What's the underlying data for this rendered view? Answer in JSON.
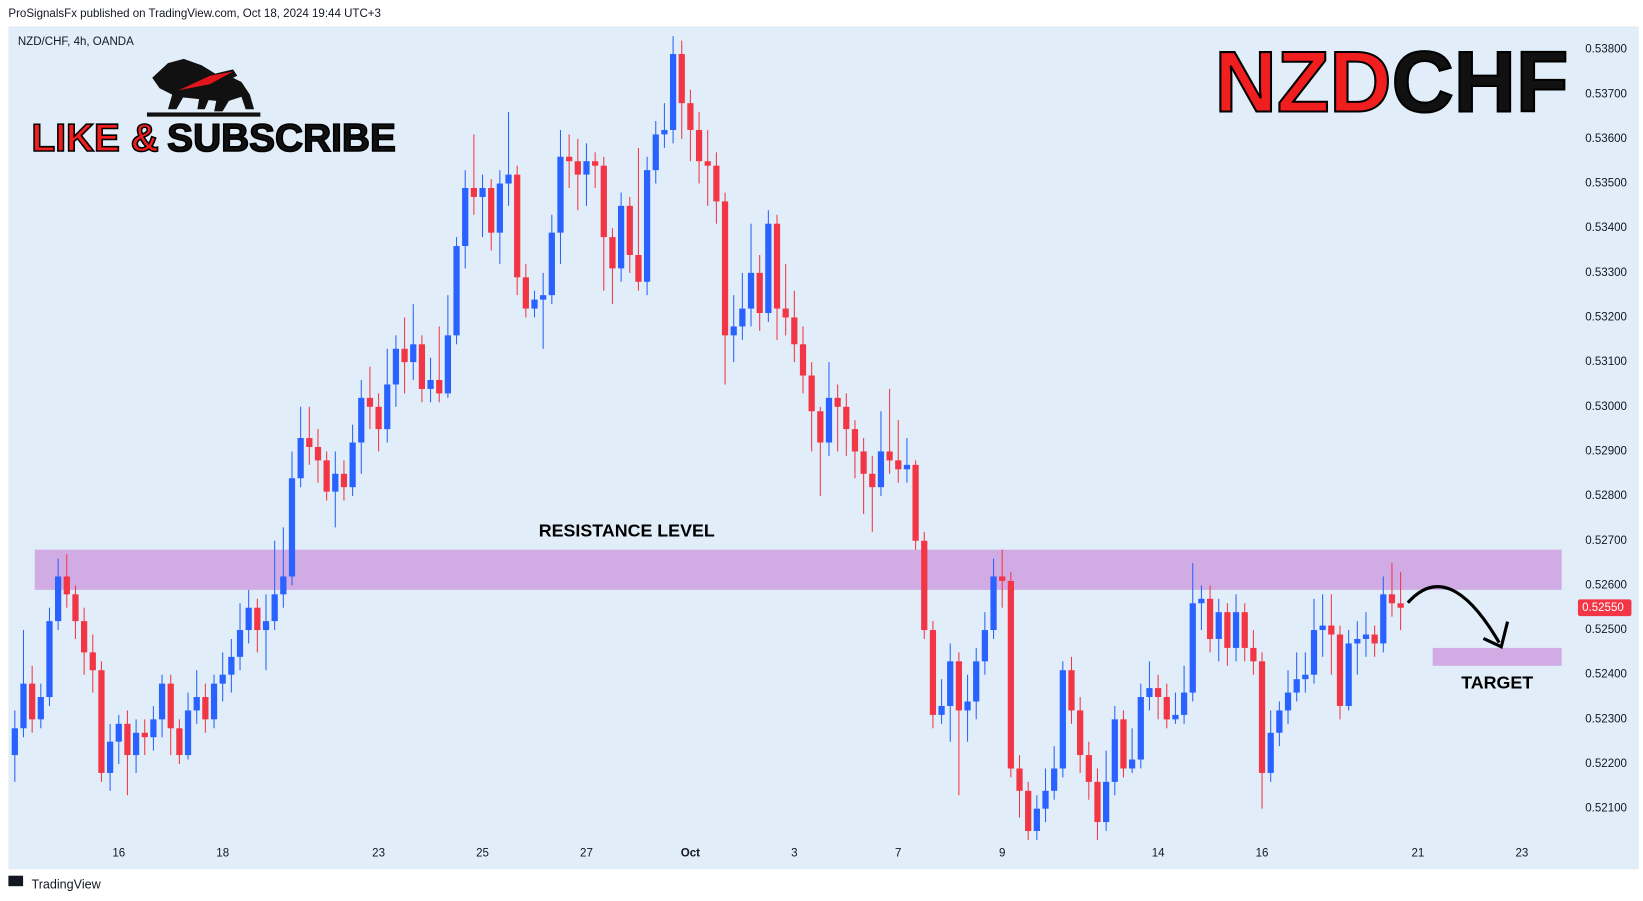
{
  "chart_data": {
    "type": "candlestick",
    "header": "ProSignalsFx published on TradingView.com, Oct 18, 2024 19:44 UTC+3",
    "symbol_info": "NZD/CHF, 4h, OANDA",
    "promo": [
      "LIKE &",
      "SUBSCRIBE"
    ],
    "title": [
      "NZD",
      "CHF"
    ],
    "footer": "TradingView",
    "up_color": "#2962ff",
    "down_color": "#f23645",
    "xlim": [
      -0.5,
      179.5
    ],
    "xticks": [
      {
        "value": 12,
        "label": "16"
      },
      {
        "value": 24,
        "label": "18"
      },
      {
        "value": 42,
        "label": "23"
      },
      {
        "value": 54,
        "label": "25"
      },
      {
        "value": 66,
        "label": "27"
      },
      {
        "value": 78,
        "label": "Oct"
      },
      {
        "value": 90,
        "label": "3"
      },
      {
        "value": 102,
        "label": "7"
      },
      {
        "value": 114,
        "label": "9"
      },
      {
        "value": 132,
        "label": "14"
      },
      {
        "value": 144,
        "label": "16"
      },
      {
        "value": 162,
        "label": "21"
      },
      {
        "value": 174,
        "label": "23"
      }
    ],
    "ylim": [
      0.51964,
      0.53852
    ],
    "yticks": [
      {
        "value": 0.521,
        "label": "0.52100"
      },
      {
        "value": 0.522,
        "label": "0.52200"
      },
      {
        "value": 0.523,
        "label": "0.52300"
      },
      {
        "value": 0.524,
        "label": "0.52400"
      },
      {
        "value": 0.525,
        "label": "0.52500"
      },
      {
        "value": 0.526,
        "label": "0.52600"
      },
      {
        "value": 0.527,
        "label": "0.52700"
      },
      {
        "value": 0.528,
        "label": "0.52800"
      },
      {
        "value": 0.529,
        "label": "0.52900"
      },
      {
        "value": 0.53,
        "label": "0.53000"
      },
      {
        "value": 0.531,
        "label": "0.53100"
      },
      {
        "value": 0.532,
        "label": "0.53200"
      },
      {
        "value": 0.533,
        "label": "0.53300"
      },
      {
        "value": 0.534,
        "label": "0.53400"
      },
      {
        "value": 0.535,
        "label": "0.53500"
      },
      {
        "value": 0.536,
        "label": "0.53600"
      },
      {
        "value": 0.537,
        "label": "0.53700"
      },
      {
        "value": 0.538,
        "label": "0.53800"
      }
    ],
    "last_price": {
      "value": 0.5255,
      "label": "0.52550"
    },
    "zones": [
      {
        "label": "RESISTANCE LEVEL",
        "top": 0.5268,
        "bottom": 0.5259,
        "from": 2.3,
        "to": 178.6,
        "color": "#ce9fe0"
      },
      {
        "label": "TARGET",
        "top": 0.5246,
        "bottom": 0.5242,
        "from": 163.7,
        "to": 178.6,
        "color": "#ce9fe0"
      }
    ],
    "candles": [
      [
        0.5222,
        0.5232,
        0.5216,
        0.5228
      ],
      [
        0.5228,
        0.525,
        0.5226,
        0.5238
      ],
      [
        0.5238,
        0.5242,
        0.5227,
        0.523
      ],
      [
        0.523,
        0.5238,
        0.5228,
        0.5235
      ],
      [
        0.5235,
        0.5255,
        0.5233,
        0.5252
      ],
      [
        0.5252,
        0.5266,
        0.525,
        0.5262
      ],
      [
        0.5262,
        0.5267,
        0.5255,
        0.5258
      ],
      [
        0.5258,
        0.526,
        0.5248,
        0.5252
      ],
      [
        0.5252,
        0.5255,
        0.524,
        0.5245
      ],
      [
        0.5245,
        0.5249,
        0.5236,
        0.5241
      ],
      [
        0.5241,
        0.5243,
        0.5216,
        0.5218
      ],
      [
        0.5218,
        0.5229,
        0.5214,
        0.5225
      ],
      [
        0.5225,
        0.5231,
        0.522,
        0.5229
      ],
      [
        0.5229,
        0.5232,
        0.5213,
        0.5222
      ],
      [
        0.5222,
        0.523,
        0.5218,
        0.5227
      ],
      [
        0.5227,
        0.523,
        0.5222,
        0.5226
      ],
      [
        0.5226,
        0.5233,
        0.5223,
        0.523
      ],
      [
        0.523,
        0.524,
        0.5226,
        0.5238
      ],
      [
        0.5238,
        0.524,
        0.5222,
        0.5228
      ],
      [
        0.5228,
        0.523,
        0.522,
        0.5222
      ],
      [
        0.5222,
        0.5236,
        0.5221,
        0.5232
      ],
      [
        0.5232,
        0.5241,
        0.5229,
        0.5235
      ],
      [
        0.5235,
        0.5238,
        0.5227,
        0.523
      ],
      [
        0.523,
        0.524,
        0.5228,
        0.5238
      ],
      [
        0.5238,
        0.5245,
        0.5234,
        0.524
      ],
      [
        0.524,
        0.5248,
        0.5236,
        0.5244
      ],
      [
        0.5244,
        0.5256,
        0.5241,
        0.525
      ],
      [
        0.525,
        0.5259,
        0.5247,
        0.5255
      ],
      [
        0.5255,
        0.5257,
        0.5245,
        0.525
      ],
      [
        0.525,
        0.5258,
        0.5241,
        0.5252
      ],
      [
        0.5252,
        0.527,
        0.525,
        0.5258
      ],
      [
        0.5258,
        0.5273,
        0.5255,
        0.5262
      ],
      [
        0.5262,
        0.529,
        0.526,
        0.5284
      ],
      [
        0.5284,
        0.53,
        0.5282,
        0.5293
      ],
      [
        0.5293,
        0.53,
        0.5287,
        0.5291
      ],
      [
        0.5291,
        0.5295,
        0.5283,
        0.5288
      ],
      [
        0.5288,
        0.529,
        0.5279,
        0.5281
      ],
      [
        0.5281,
        0.529,
        0.5273,
        0.5285
      ],
      [
        0.5285,
        0.5288,
        0.5279,
        0.5282
      ],
      [
        0.5282,
        0.5296,
        0.528,
        0.5292
      ],
      [
        0.5292,
        0.5306,
        0.5285,
        0.5302
      ],
      [
        0.5302,
        0.5309,
        0.5295,
        0.53
      ],
      [
        0.53,
        0.5303,
        0.529,
        0.5295
      ],
      [
        0.5295,
        0.5313,
        0.5292,
        0.5305
      ],
      [
        0.5305,
        0.5316,
        0.53,
        0.5313
      ],
      [
        0.5313,
        0.532,
        0.5303,
        0.531
      ],
      [
        0.531,
        0.5323,
        0.5306,
        0.5314
      ],
      [
        0.5314,
        0.5316,
        0.5301,
        0.5304
      ],
      [
        0.5304,
        0.5311,
        0.5301,
        0.5306
      ],
      [
        0.5306,
        0.5318,
        0.5301,
        0.5303
      ],
      [
        0.5303,
        0.5325,
        0.5302,
        0.5316
      ],
      [
        0.5316,
        0.5338,
        0.5314,
        0.5336
      ],
      [
        0.5336,
        0.5353,
        0.5331,
        0.5349
      ],
      [
        0.5349,
        0.5361,
        0.5343,
        0.5347
      ],
      [
        0.5347,
        0.5352,
        0.5338,
        0.5349
      ],
      [
        0.5349,
        0.5351,
        0.5335,
        0.5339
      ],
      [
        0.5339,
        0.5353,
        0.5332,
        0.535
      ],
      [
        0.535,
        0.5366,
        0.5345,
        0.5352
      ],
      [
        0.5352,
        0.5354,
        0.5325,
        0.5329
      ],
      [
        0.5329,
        0.5332,
        0.532,
        0.5322
      ],
      [
        0.5322,
        0.5326,
        0.532,
        0.5324
      ],
      [
        0.5324,
        0.533,
        0.5313,
        0.5325
      ],
      [
        0.5325,
        0.5343,
        0.5323,
        0.5339
      ],
      [
        0.5339,
        0.5362,
        0.5332,
        0.5356
      ],
      [
        0.5356,
        0.5361,
        0.5349,
        0.5355
      ],
      [
        0.5355,
        0.536,
        0.5344,
        0.5352
      ],
      [
        0.5352,
        0.5359,
        0.5345,
        0.5355
      ],
      [
        0.5355,
        0.5357,
        0.5349,
        0.5354
      ],
      [
        0.5354,
        0.5356,
        0.5326,
        0.5338
      ],
      [
        0.5338,
        0.534,
        0.5323,
        0.5331
      ],
      [
        0.5331,
        0.5348,
        0.5328,
        0.5345
      ],
      [
        0.5345,
        0.5347,
        0.533,
        0.5334
      ],
      [
        0.5334,
        0.5358,
        0.5326,
        0.5328
      ],
      [
        0.5328,
        0.5356,
        0.5325,
        0.5353
      ],
      [
        0.5353,
        0.5364,
        0.535,
        0.5361
      ],
      [
        0.5361,
        0.5368,
        0.5358,
        0.5362
      ],
      [
        0.5362,
        0.5383,
        0.5359,
        0.5379
      ],
      [
        0.5379,
        0.5382,
        0.536,
        0.5368
      ],
      [
        0.5368,
        0.5371,
        0.5355,
        0.5362
      ],
      [
        0.5362,
        0.5366,
        0.535,
        0.5355
      ],
      [
        0.5355,
        0.5362,
        0.5345,
        0.5354
      ],
      [
        0.5354,
        0.5357,
        0.5341,
        0.5346
      ],
      [
        0.5346,
        0.5348,
        0.5305,
        0.5316
      ],
      [
        0.5316,
        0.5325,
        0.531,
        0.5318
      ],
      [
        0.5318,
        0.533,
        0.5315,
        0.5322
      ],
      [
        0.5322,
        0.5341,
        0.5318,
        0.533
      ],
      [
        0.533,
        0.5334,
        0.5317,
        0.5321
      ],
      [
        0.5321,
        0.5344,
        0.5319,
        0.5341
      ],
      [
        0.5341,
        0.5343,
        0.5315,
        0.5322
      ],
      [
        0.5322,
        0.5332,
        0.5316,
        0.532
      ],
      [
        0.532,
        0.5326,
        0.531,
        0.5314
      ],
      [
        0.5314,
        0.5318,
        0.5303,
        0.5307
      ],
      [
        0.5307,
        0.531,
        0.529,
        0.5299
      ],
      [
        0.5299,
        0.53,
        0.528,
        0.5292
      ],
      [
        0.5292,
        0.531,
        0.5289,
        0.5302
      ],
      [
        0.5302,
        0.5305,
        0.529,
        0.53
      ],
      [
        0.53,
        0.5303,
        0.5289,
        0.5295
      ],
      [
        0.5295,
        0.5297,
        0.5284,
        0.529
      ],
      [
        0.529,
        0.5293,
        0.5276,
        0.5285
      ],
      [
        0.5285,
        0.5289,
        0.5272,
        0.5282
      ],
      [
        0.5282,
        0.5299,
        0.528,
        0.529
      ],
      [
        0.529,
        0.5304,
        0.5285,
        0.5288
      ],
      [
        0.5288,
        0.5297,
        0.5283,
        0.5286
      ],
      [
        0.5286,
        0.5293,
        0.5283,
        0.5287
      ],
      [
        0.5287,
        0.5288,
        0.5268,
        0.527
      ],
      [
        0.527,
        0.5272,
        0.5248,
        0.525
      ],
      [
        0.525,
        0.5252,
        0.5228,
        0.5231
      ],
      [
        0.5231,
        0.5239,
        0.5229,
        0.5233
      ],
      [
        0.5233,
        0.5247,
        0.5225,
        0.5243
      ],
      [
        0.5243,
        0.5245,
        0.5213,
        0.5232
      ],
      [
        0.5232,
        0.524,
        0.5225,
        0.5234
      ],
      [
        0.5234,
        0.5246,
        0.523,
        0.5243
      ],
      [
        0.5243,
        0.5254,
        0.524,
        0.525
      ],
      [
        0.525,
        0.5266,
        0.5248,
        0.5262
      ],
      [
        0.5262,
        0.5268,
        0.5255,
        0.5261
      ],
      [
        0.5261,
        0.5263,
        0.5217,
        0.5219
      ],
      [
        0.5219,
        0.5222,
        0.5208,
        0.5214
      ],
      [
        0.5214,
        0.5216,
        0.5203,
        0.5205
      ],
      [
        0.5205,
        0.5213,
        0.5203,
        0.521
      ],
      [
        0.521,
        0.5219,
        0.5207,
        0.5214
      ],
      [
        0.5214,
        0.5224,
        0.5212,
        0.5219
      ],
      [
        0.5219,
        0.5243,
        0.5217,
        0.5241
      ],
      [
        0.5241,
        0.5244,
        0.5229,
        0.5232
      ],
      [
        0.5232,
        0.5235,
        0.5218,
        0.5222
      ],
      [
        0.5222,
        0.5225,
        0.5212,
        0.5216
      ],
      [
        0.5216,
        0.5219,
        0.5203,
        0.5207
      ],
      [
        0.5207,
        0.5223,
        0.5205,
        0.5216
      ],
      [
        0.5216,
        0.5233,
        0.5213,
        0.523
      ],
      [
        0.523,
        0.5232,
        0.5217,
        0.5219
      ],
      [
        0.5219,
        0.5228,
        0.5218,
        0.5221
      ],
      [
        0.5221,
        0.5238,
        0.5219,
        0.5235
      ],
      [
        0.5235,
        0.5243,
        0.5232,
        0.5237
      ],
      [
        0.5237,
        0.524,
        0.523,
        0.5235
      ],
      [
        0.5235,
        0.5238,
        0.5228,
        0.523
      ],
      [
        0.523,
        0.5236,
        0.5229,
        0.5231
      ],
      [
        0.5231,
        0.5242,
        0.5229,
        0.5236
      ],
      [
        0.5236,
        0.5265,
        0.5234,
        0.5256
      ],
      [
        0.5256,
        0.526,
        0.525,
        0.5257
      ],
      [
        0.5257,
        0.526,
        0.5245,
        0.5248
      ],
      [
        0.5248,
        0.5257,
        0.5243,
        0.5254
      ],
      [
        0.5254,
        0.5256,
        0.5242,
        0.5246
      ],
      [
        0.5246,
        0.5258,
        0.5243,
        0.5254
      ],
      [
        0.5254,
        0.5256,
        0.5243,
        0.5246
      ],
      [
        0.5246,
        0.525,
        0.524,
        0.5243
      ],
      [
        0.5243,
        0.5245,
        0.521,
        0.5218
      ],
      [
        0.5218,
        0.5232,
        0.5216,
        0.5227
      ],
      [
        0.5227,
        0.5234,
        0.5224,
        0.5232
      ],
      [
        0.5232,
        0.5241,
        0.5229,
        0.5236
      ],
      [
        0.5236,
        0.5245,
        0.5234,
        0.5239
      ],
      [
        0.5239,
        0.5245,
        0.5236,
        0.524
      ],
      [
        0.524,
        0.5257,
        0.5238,
        0.525
      ],
      [
        0.525,
        0.5258,
        0.5244,
        0.5251
      ],
      [
        0.5251,
        0.5258,
        0.524,
        0.5249
      ],
      [
        0.5249,
        0.5251,
        0.523,
        0.5233
      ],
      [
        0.5233,
        0.525,
        0.5232,
        0.5247
      ],
      [
        0.5247,
        0.5252,
        0.524,
        0.5248
      ],
      [
        0.5248,
        0.5254,
        0.5244,
        0.5249
      ],
      [
        0.5249,
        0.5251,
        0.5244,
        0.5247
      ],
      [
        0.5247,
        0.5262,
        0.5245,
        0.5258
      ],
      [
        0.5258,
        0.5265,
        0.5253,
        0.5256
      ],
      [
        0.5256,
        0.5263,
        0.525,
        0.5255
      ]
    ]
  }
}
